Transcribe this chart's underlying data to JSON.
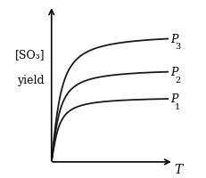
{
  "title": "",
  "ylabel_line1": "[SO₃]",
  "ylabel_line2": "yield",
  "xlabel": "T",
  "background_color": "#ffffff",
  "curve_color": "#1a1a1a",
  "curves": [
    {
      "amplitude": 0.42,
      "steepness": 18,
      "label": "P",
      "subscript": "1"
    },
    {
      "amplitude": 0.6,
      "steepness": 16,
      "label": "P",
      "subscript": "2"
    },
    {
      "amplitude": 0.82,
      "steepness": 14,
      "label": "P",
      "subscript": "3"
    }
  ],
  "x_range": [
    0,
    1
  ],
  "y_range": [
    0,
    1
  ],
  "label_fontsize": 9,
  "subscript_fontsize": 7,
  "ylabel_fontsize": 9,
  "linewidth": 1.3
}
